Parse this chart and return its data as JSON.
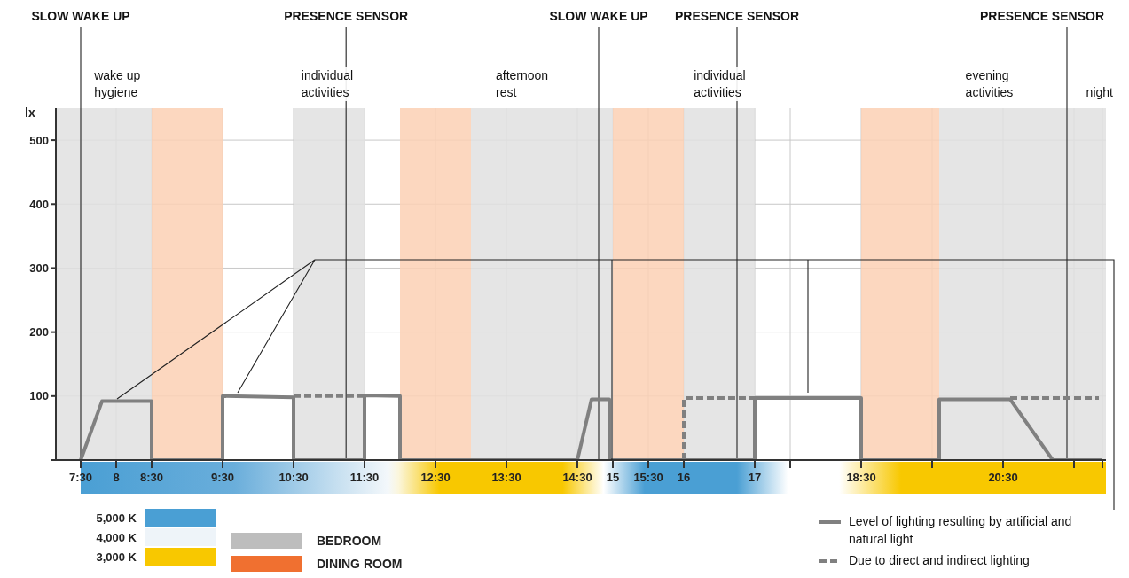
{
  "chart_data": {
    "type": "line",
    "ylabel": "lx",
    "xlim": [
      7.15,
      21.95
    ],
    "xticks": [
      {
        "value": 7.5,
        "label": "7:30"
      },
      {
        "value": 8,
        "label": "8"
      },
      {
        "value": 8.5,
        "label": "8:30"
      },
      {
        "value": 9.5,
        "label": "9:30"
      },
      {
        "value": 10.5,
        "label": "10:30"
      },
      {
        "value": 11.5,
        "label": "11:30"
      },
      {
        "value": 12.5,
        "label": "12:30"
      },
      {
        "value": 13.5,
        "label": "13:30"
      },
      {
        "value": 14.5,
        "label": "14:30"
      },
      {
        "value": 15,
        "label": "15"
      },
      {
        "value": 15.5,
        "label": "15:30"
      },
      {
        "value": 16,
        "label": "16"
      },
      {
        "value": 17,
        "label": "17"
      },
      {
        "value": 17.5,
        "label": null
      },
      {
        "value": 18.5,
        "label": "18:30"
      },
      {
        "value": 19.5,
        "label": null
      },
      {
        "value": 20.5,
        "label": "20:30"
      },
      {
        "value": 21.5,
        "label": null
      },
      {
        "value": 21.9,
        "label": null
      }
    ],
    "ylim": [
      0,
      550
    ],
    "yticks": [
      {
        "value": 0,
        "label": null
      },
      100,
      200,
      300,
      400,
      500
    ],
    "grid": true,
    "marker": "none",
    "legend": "bottom right",
    "series": [
      {
        "name": "Level of lighting resulting by artificial and natural light",
        "color": "#808080",
        "line_style": "solid",
        "x": [
          7.5,
          7.8,
          8.5,
          8.5,
          9.5,
          9.5,
          10.5,
          10.5,
          11.5,
          11.5,
          12,
          12,
          14.5,
          14.7,
          14.95,
          14.95,
          17,
          17,
          18.5,
          18.5,
          19.6,
          19.6,
          20.6,
          21.2,
          21.9
        ],
        "values": [
          0,
          92,
          92,
          0,
          0,
          100,
          98,
          0,
          0,
          101,
          100,
          0,
          0,
          95,
          95,
          0,
          0,
          97,
          97,
          0,
          0,
          95,
          95,
          0,
          0
        ]
      },
      {
        "name": "Due to direct and indirect lighting",
        "color": "#808080",
        "line_style": "dashed",
        "x": [
          10.5,
          11.5,
          11.6,
          16,
          16,
          17,
          17.1,
          20.6,
          21.85
        ],
        "values": [
          100,
          100,
          null,
          0,
          97,
          97,
          null,
          97,
          97
        ]
      }
    ],
    "ref_lines": [
      {
        "axis": "x",
        "value": 7.5,
        "label": "SLOW WAKE UP",
        "color": "#333333"
      },
      {
        "axis": "x",
        "value": 11.24,
        "label": "PRESENCE SENSOR",
        "color": "#333333"
      },
      {
        "axis": "x",
        "value": 14.8,
        "label": "SLOW WAKE UP",
        "color": "#333333"
      },
      {
        "axis": "x",
        "value": 16.75,
        "label": "PRESENCE SENSOR",
        "color": "#333333"
      },
      {
        "axis": "x",
        "value": 21.4,
        "label": "PRESENCE SENSOR",
        "color": "#333333"
      },
      {
        "axis": "y",
        "value": 313,
        "color": "#222222"
      }
    ],
    "bands": [
      {
        "axis": "x",
        "from": 7.15,
        "to": 8.5,
        "color": "#e0e0e0"
      },
      {
        "axis": "x",
        "from": 8.5,
        "to": 9.5,
        "color": "#fbd0b4"
      },
      {
        "axis": "x",
        "from": 10.5,
        "to": 11.5,
        "color": "#e0e0e0"
      },
      {
        "axis": "x",
        "from": 12,
        "to": 13,
        "color": "#fbd0b4"
      },
      {
        "axis": "x",
        "from": 13,
        "to": 15,
        "color": "#e0e0e0"
      },
      {
        "axis": "x",
        "from": 15,
        "to": 16,
        "color": "#fbd0b4"
      },
      {
        "axis": "x",
        "from": 16,
        "to": 17,
        "color": "#e0e0e0"
      },
      {
        "axis": "x",
        "from": 18.5,
        "to": 19.6,
        "color": "#fbd0b4"
      },
      {
        "axis": "x",
        "from": 19.6,
        "to": 21.95,
        "color": "#e0e0e0"
      }
    ],
    "annotations": [
      {
        "text": "wake up hygiene",
        "x": 7.69,
        "y": 550
      },
      {
        "text": "individual activities",
        "x": 10.61,
        "y": 550
      },
      {
        "text": "afternoon rest",
        "x": 13.35,
        "y": 550
      },
      {
        "text": "individual activities",
        "x": 16.14,
        "y": 550
      },
      {
        "text": "evening activities",
        "x": 19.97,
        "y": 550
      },
      {
        "text": "night",
        "x": 21.67,
        "y": 550
      },
      "5,000 K",
      "4,000 K",
      "3,000 K",
      "BEDROOM",
      "DINING ROOM"
    ]
  }
}
